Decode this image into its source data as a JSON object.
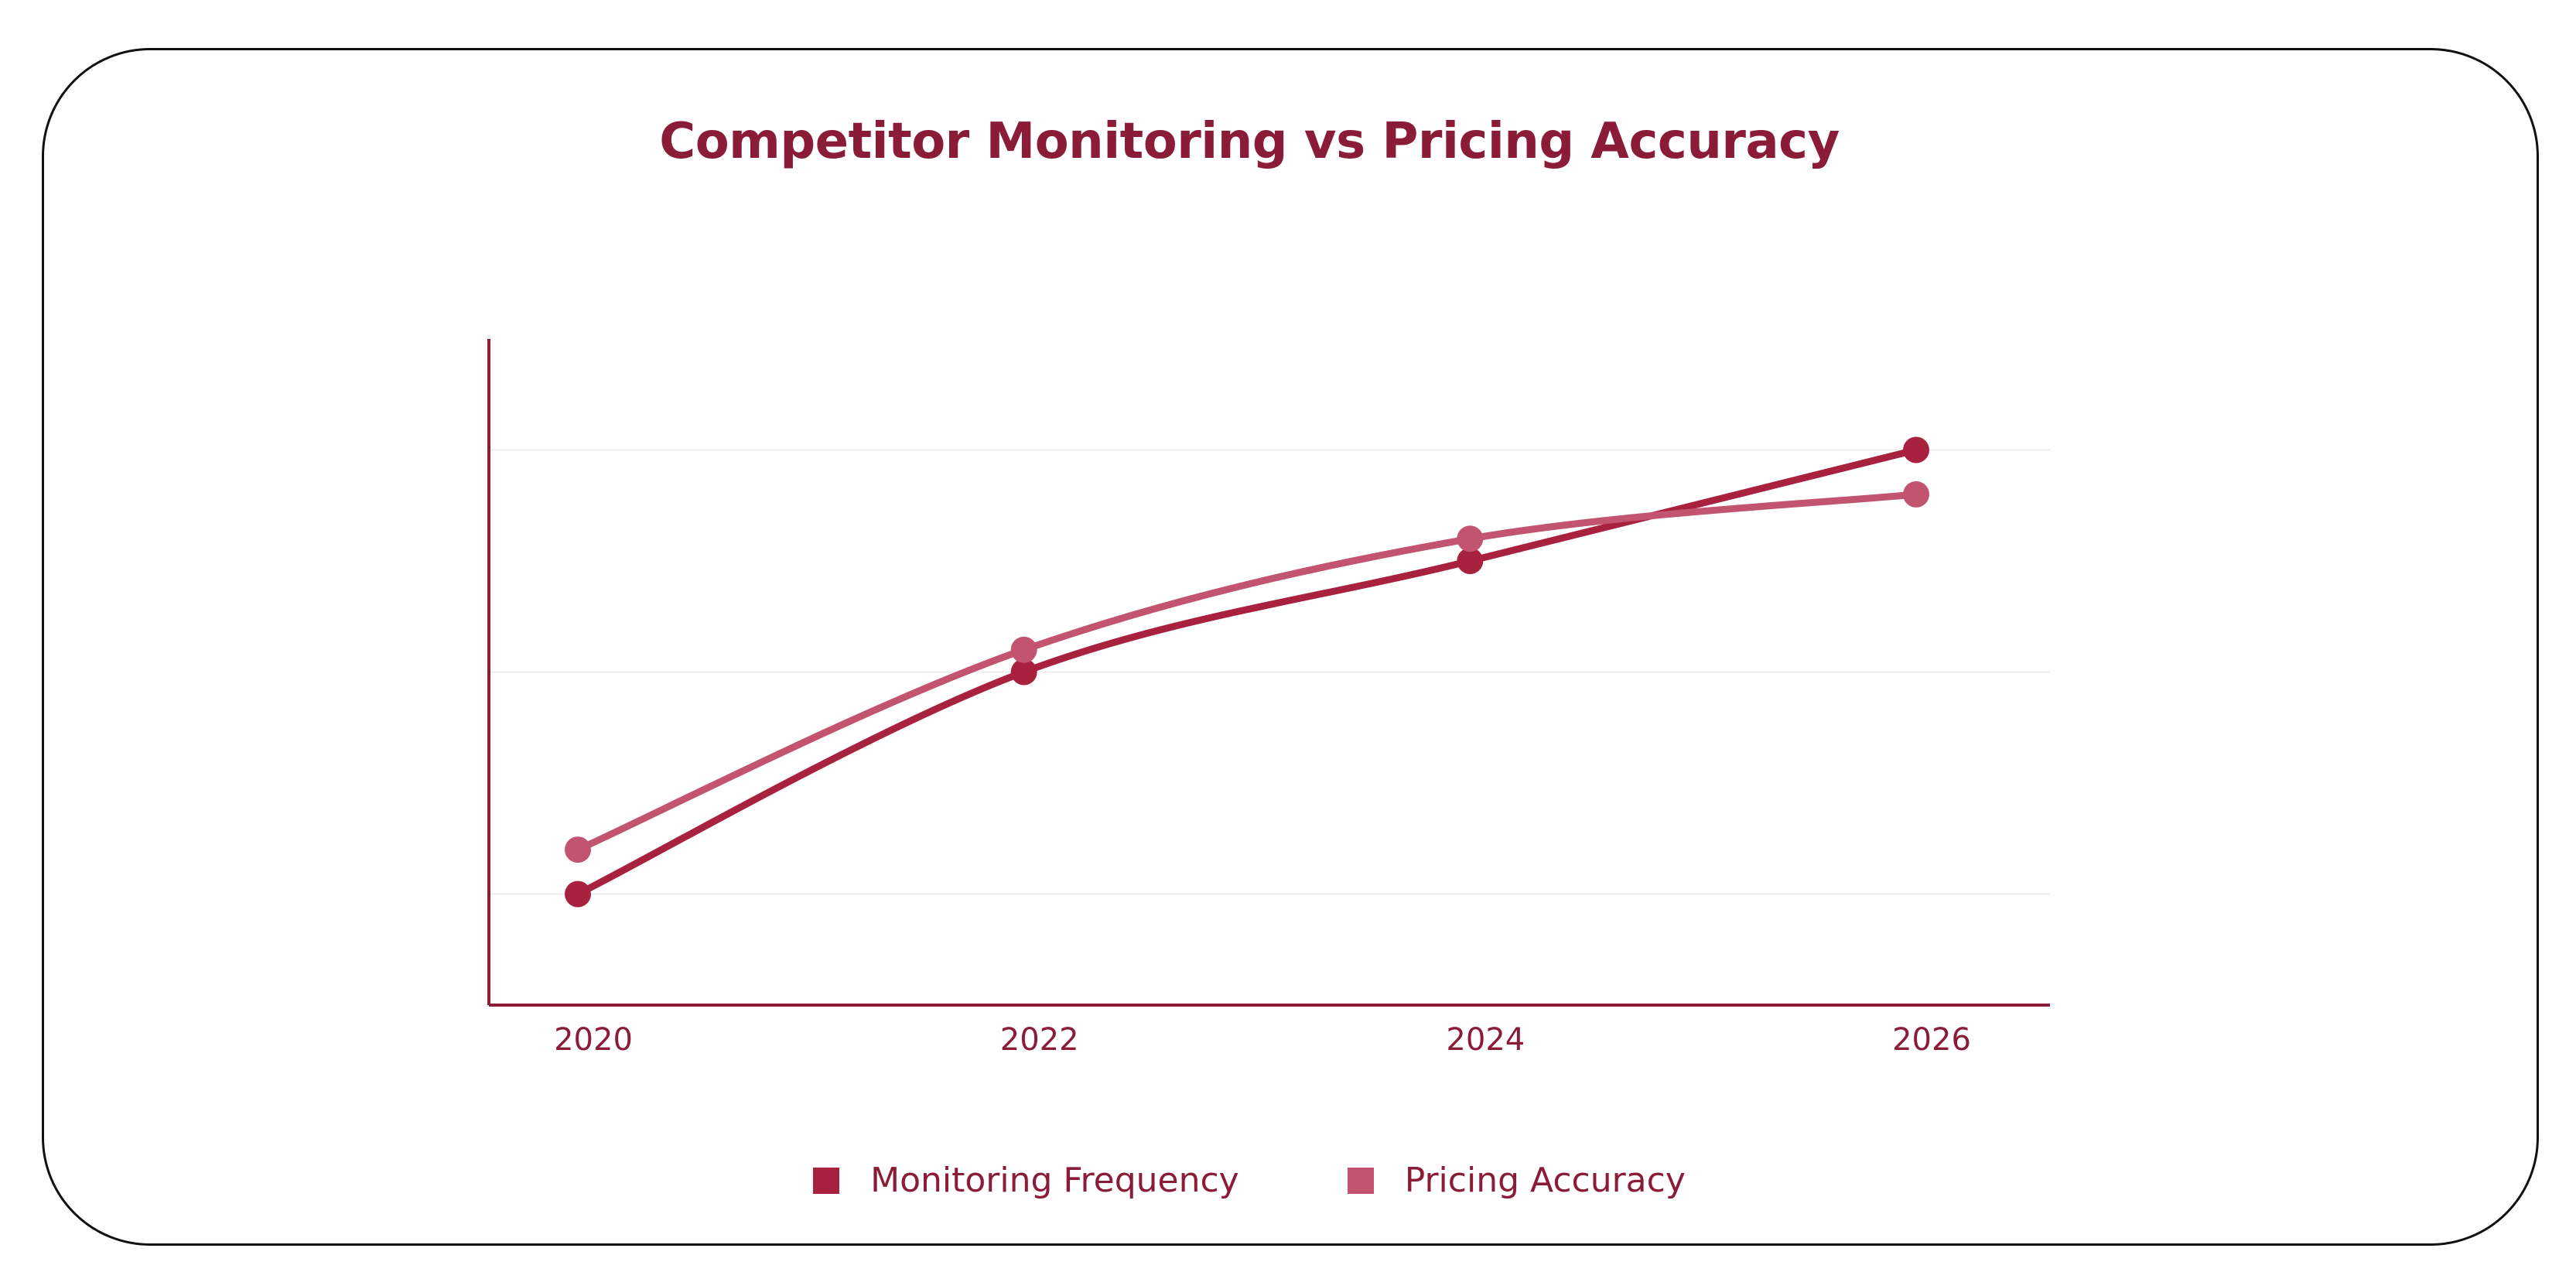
{
  "chart_data": {
    "type": "line",
    "title": "Competitor Monitoring vs Pricing Accuracy",
    "x": [
      "2020",
      "2022",
      "2024",
      "2026"
    ],
    "series": [
      {
        "name": "Monitoring Frequency",
        "color": "#a8223f",
        "values": [
          1.0,
          2.0,
          2.5,
          3.0
        ]
      },
      {
        "name": "Pricing Accuracy",
        "color": "#c25470",
        "values": [
          1.2,
          2.1,
          2.6,
          2.8
        ]
      }
    ],
    "ylim": [
      0.5,
      3.5
    ],
    "grid": true,
    "legend": "bottom"
  }
}
